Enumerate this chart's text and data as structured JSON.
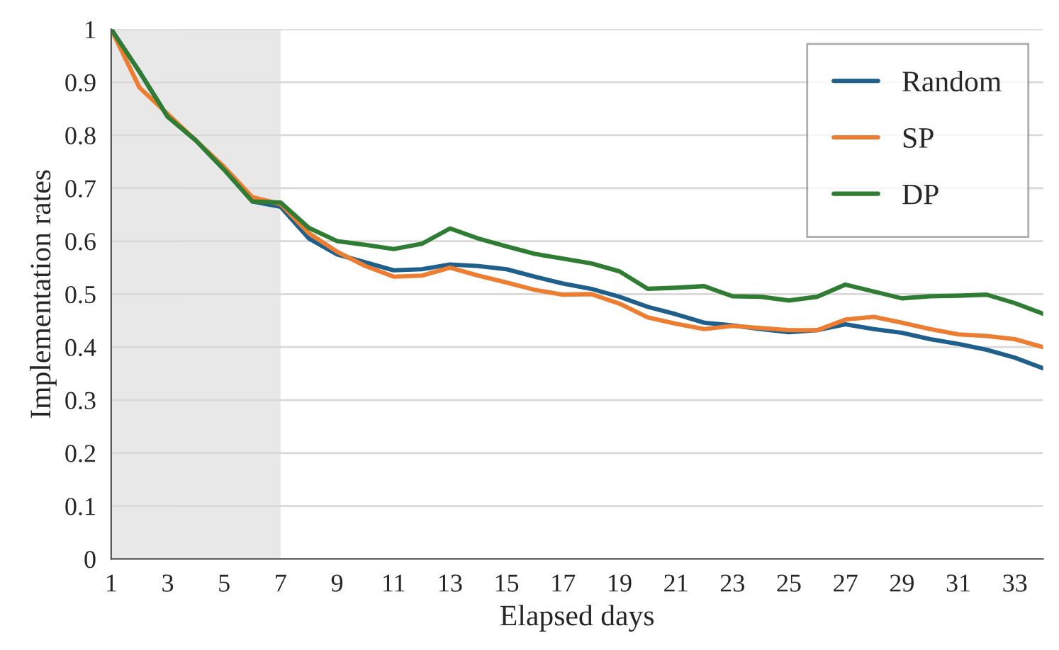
{
  "chart_data": {
    "type": "line",
    "xlabel": "Elapsed days",
    "ylabel": "Implementation rates",
    "x": [
      1,
      2,
      3,
      4,
      5,
      6,
      7,
      8,
      9,
      10,
      11,
      12,
      13,
      14,
      15,
      16,
      17,
      18,
      19,
      20,
      21,
      22,
      23,
      24,
      25,
      26,
      27,
      28,
      29,
      30,
      31,
      32,
      33,
      34
    ],
    "series": [
      {
        "name": "Random",
        "color": "#1f5f8b",
        "values": [
          1,
          0.92,
          0.835,
          0.79,
          0.735,
          0.675,
          0.665,
          0.605,
          0.575,
          0.56,
          0.545,
          0.547,
          0.556,
          0.553,
          0.547,
          0.533,
          0.52,
          0.51,
          0.495,
          0.476,
          0.462,
          0.446,
          0.441,
          0.434,
          0.428,
          0.432,
          0.443,
          0.434,
          0.427,
          0.415,
          0.406,
          0.395,
          0.38,
          0.36
        ]
      },
      {
        "name": "SP",
        "color": "#ed7d31",
        "values": [
          1,
          0.89,
          0.84,
          0.79,
          0.74,
          0.683,
          0.67,
          0.615,
          0.58,
          0.553,
          0.533,
          0.535,
          0.55,
          0.535,
          0.522,
          0.508,
          0.499,
          0.5,
          0.482,
          0.456,
          0.444,
          0.434,
          0.44,
          0.436,
          0.432,
          0.432,
          0.452,
          0.457,
          0.446,
          0.434,
          0.424,
          0.421,
          0.415,
          0.4
        ]
      },
      {
        "name": "DP",
        "color": "#2e7d32",
        "values": [
          1,
          0.92,
          0.835,
          0.79,
          0.735,
          0.675,
          0.673,
          0.625,
          0.6,
          0.593,
          0.585,
          0.595,
          0.624,
          0.605,
          0.59,
          0.576,
          0.567,
          0.558,
          0.543,
          0.51,
          0.512,
          0.515,
          0.496,
          0.495,
          0.488,
          0.495,
          0.518,
          0.505,
          0.492,
          0.496,
          0.497,
          0.499,
          0.483,
          0.463
        ]
      }
    ],
    "xlim": [
      1,
      34
    ],
    "xticks": [
      1,
      3,
      5,
      7,
      9,
      11,
      13,
      15,
      17,
      19,
      21,
      23,
      25,
      27,
      29,
      31,
      33
    ],
    "ylim": [
      0,
      1
    ],
    "yticks": [
      0,
      0.1,
      0.2,
      0.3,
      0.4,
      0.5,
      0.6,
      0.7,
      0.8,
      0.9,
      1
    ],
    "bands": [
      {
        "axis": "x",
        "from": 1,
        "to": 7,
        "color": "#e8e8e8"
      }
    ],
    "grid": "y",
    "legend": "top right",
    "marker": "none",
    "line_style": "solid"
  }
}
